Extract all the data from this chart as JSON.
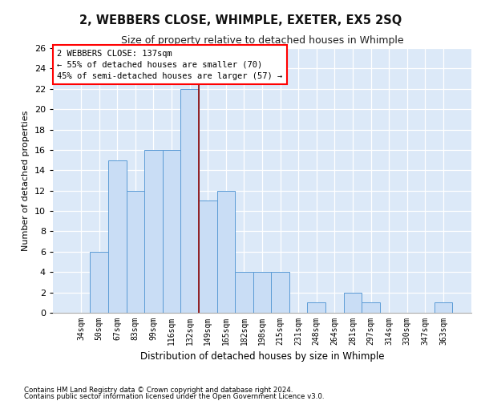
{
  "title": "2, WEBBERS CLOSE, WHIMPLE, EXETER, EX5 2SQ",
  "subtitle": "Size of property relative to detached houses in Whimple",
  "xlabel": "Distribution of detached houses by size in Whimple",
  "ylabel": "Number of detached properties",
  "categories": [
    "34sqm",
    "50sqm",
    "67sqm",
    "83sqm",
    "99sqm",
    "116sqm",
    "132sqm",
    "149sqm",
    "165sqm",
    "182sqm",
    "198sqm",
    "215sqm",
    "231sqm",
    "248sqm",
    "264sqm",
    "281sqm",
    "297sqm",
    "314sqm",
    "330sqm",
    "347sqm",
    "363sqm"
  ],
  "values": [
    0,
    6,
    15,
    12,
    16,
    16,
    22,
    11,
    12,
    4,
    4,
    4,
    0,
    1,
    0,
    2,
    1,
    0,
    0,
    0,
    1
  ],
  "bar_color": "#c9ddf5",
  "bar_edge_color": "#5b9bd5",
  "ylim": [
    0,
    26
  ],
  "yticks": [
    0,
    2,
    4,
    6,
    8,
    10,
    12,
    14,
    16,
    18,
    20,
    22,
    24,
    26
  ],
  "property_line_x": 6.5,
  "annotation_line1": "2 WEBBERS CLOSE: 137sqm",
  "annotation_line2": "← 55% of detached houses are smaller (70)",
  "annotation_line3": "45% of semi-detached houses are larger (57) →",
  "footer1": "Contains HM Land Registry data © Crown copyright and database right 2024.",
  "footer2": "Contains public sector information licensed under the Open Government Licence v3.0.",
  "plot_bg": "#dce9f8"
}
